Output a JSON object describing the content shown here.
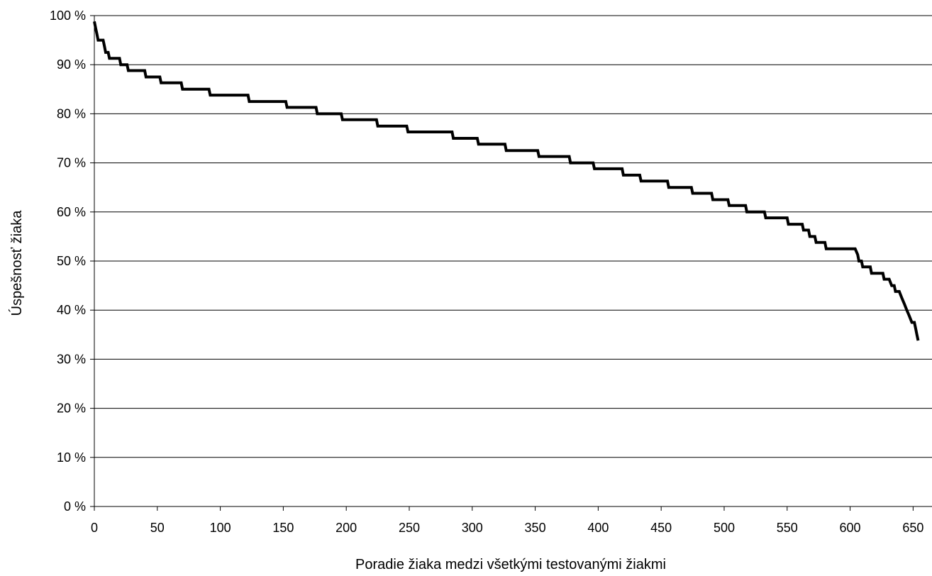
{
  "chart_data": {
    "type": "line",
    "title": "",
    "xlabel": "Poradie žiaka medzi všetkými testovanými žiakmi",
    "ylabel": "Úspešnosť žiaka",
    "xlim": [
      0,
      665
    ],
    "ylim": [
      0,
      100
    ],
    "x_ticks": [
      0,
      50,
      100,
      150,
      200,
      250,
      300,
      350,
      400,
      450,
      500,
      550,
      600,
      650
    ],
    "y_ticks": [
      0,
      10,
      20,
      30,
      40,
      50,
      60,
      70,
      80,
      90,
      100
    ],
    "y_tick_labels": [
      "0 %",
      "10 %",
      "20 %",
      "30 %",
      "40 %",
      "50 %",
      "60 %",
      "70 %",
      "80 %",
      "90 %",
      "100 %"
    ],
    "grid": {
      "horizontal": true,
      "vertical": false
    },
    "legend": "none",
    "series": [
      {
        "color": "#000000",
        "points": [
          [
            0,
            98.8
          ],
          [
            1,
            97.5
          ],
          [
            2,
            96.3
          ],
          [
            3,
            95.0
          ],
          [
            7,
            95.0
          ],
          [
            8,
            93.8
          ],
          [
            9,
            92.5
          ],
          [
            11,
            92.5
          ],
          [
            12,
            91.3
          ],
          [
            20,
            91.3
          ],
          [
            21,
            90.0
          ],
          [
            26,
            90.0
          ],
          [
            27,
            88.8
          ],
          [
            40,
            88.8
          ],
          [
            41,
            87.5
          ],
          [
            52,
            87.5
          ],
          [
            53,
            86.3
          ],
          [
            69,
            86.3
          ],
          [
            70,
            85.0
          ],
          [
            91,
            85.0
          ],
          [
            92,
            83.8
          ],
          [
            122,
            83.8
          ],
          [
            123,
            82.5
          ],
          [
            152,
            82.5
          ],
          [
            153,
            81.3
          ],
          [
            176,
            81.3
          ],
          [
            177,
            80.0
          ],
          [
            196,
            80.0
          ],
          [
            197,
            78.8
          ],
          [
            224,
            78.8
          ],
          [
            225,
            77.5
          ],
          [
            248,
            77.5
          ],
          [
            249,
            76.3
          ],
          [
            284,
            76.3
          ],
          [
            285,
            75.0
          ],
          [
            304,
            75.0
          ],
          [
            305,
            73.8
          ],
          [
            326,
            73.8
          ],
          [
            327,
            72.5
          ],
          [
            352,
            72.5
          ],
          [
            353,
            71.3
          ],
          [
            377,
            71.3
          ],
          [
            378,
            70.0
          ],
          [
            396,
            70.0
          ],
          [
            397,
            68.8
          ],
          [
            419,
            68.8
          ],
          [
            420,
            67.5
          ],
          [
            433,
            67.5
          ],
          [
            434,
            66.3
          ],
          [
            455,
            66.3
          ],
          [
            456,
            65.0
          ],
          [
            474,
            65.0
          ],
          [
            475,
            63.8
          ],
          [
            490,
            63.8
          ],
          [
            491,
            62.5
          ],
          [
            503,
            62.5
          ],
          [
            504,
            61.3
          ],
          [
            517,
            61.3
          ],
          [
            518,
            60.0
          ],
          [
            532,
            60.0
          ],
          [
            533,
            58.8
          ],
          [
            550,
            58.8
          ],
          [
            551,
            57.5
          ],
          [
            562,
            57.5
          ],
          [
            563,
            56.3
          ],
          [
            567,
            56.3
          ],
          [
            568,
            55.0
          ],
          [
            572,
            55.0
          ],
          [
            573,
            53.8
          ],
          [
            580,
            53.8
          ],
          [
            581,
            52.5
          ],
          [
            604,
            52.5
          ],
          [
            606,
            51.3
          ],
          [
            607,
            50.0
          ],
          [
            609,
            50.0
          ],
          [
            610,
            48.8
          ],
          [
            616,
            48.8
          ],
          [
            617,
            47.5
          ],
          [
            626,
            47.5
          ],
          [
            627,
            46.3
          ],
          [
            631,
            46.3
          ],
          [
            633,
            45.0
          ],
          [
            635,
            45.0
          ],
          [
            636,
            43.8
          ],
          [
            639,
            43.8
          ],
          [
            641,
            42.5
          ],
          [
            643,
            41.3
          ],
          [
            645,
            40.0
          ],
          [
            647,
            38.8
          ],
          [
            649,
            37.5
          ],
          [
            651,
            37.5
          ],
          [
            652,
            36.3
          ],
          [
            653,
            35.0
          ],
          [
            654,
            33.8
          ]
        ]
      }
    ]
  }
}
